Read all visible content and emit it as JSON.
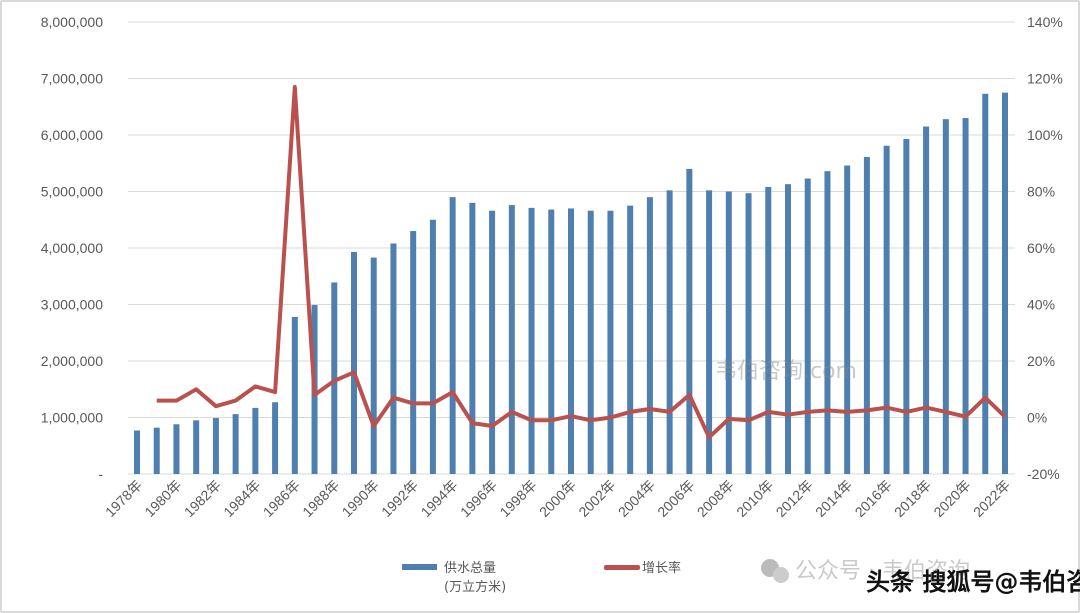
{
  "chart_data": {
    "type": "bar+line",
    "title": "",
    "categories": [
      "1978年",
      "1979年",
      "1980年",
      "1981年",
      "1982年",
      "1983年",
      "1984年",
      "1985年",
      "1986年",
      "1987年",
      "1988年",
      "1989年",
      "1990年",
      "1991年",
      "1992年",
      "1993年",
      "1994年",
      "1995年",
      "1996年",
      "1997年",
      "1998年",
      "1999年",
      "2000年",
      "2001年",
      "2002年",
      "2003年",
      "2004年",
      "2005年",
      "2006年",
      "2007年",
      "2008年",
      "2009年",
      "2010年",
      "2011年",
      "2012年",
      "2013年",
      "2014年",
      "2015年",
      "2016年",
      "2017年",
      "2018年",
      "2019年",
      "2020年",
      "2021年",
      "2022年"
    ],
    "series": [
      {
        "name": "供水总量",
        "name_line2": "(万立方米)",
        "type": "bar",
        "axis": "left",
        "color": "#4f7fae",
        "values": [
          770000,
          820000,
          880000,
          950000,
          990000,
          1060000,
          1170000,
          1270000,
          2780000,
          2990000,
          3390000,
          3930000,
          3830000,
          4080000,
          4300000,
          4500000,
          4900000,
          4800000,
          4660000,
          4760000,
          4710000,
          4680000,
          4700000,
          4660000,
          4660000,
          4750000,
          4900000,
          5020000,
          5400000,
          5020000,
          5000000,
          4970000,
          5080000,
          5130000,
          5230000,
          5360000,
          5460000,
          5610000,
          5810000,
          5930000,
          6150000,
          6280000,
          6300000,
          6730000,
          6750000
        ]
      },
      {
        "name": "增长率",
        "type": "line",
        "axis": "right",
        "color": "#b9524f",
        "values": [
          null,
          6,
          6,
          10,
          4,
          6,
          11,
          9,
          117,
          8,
          13,
          16,
          -3,
          7,
          5,
          5,
          9,
          -2,
          -3,
          2,
          -1,
          -1,
          0.5,
          -1,
          0,
          2,
          3,
          2,
          8,
          -7,
          -0.5,
          -1,
          2,
          1,
          2,
          2.5,
          2,
          2.5,
          3.5,
          2,
          3.5,
          2,
          0.3,
          7,
          0.3
        ]
      }
    ],
    "y_left": {
      "range": [
        0,
        8000000
      ],
      "ticks": [
        "-",
        "1,000,000",
        "2,000,000",
        "3,000,000",
        "4,000,000",
        "5,000,000",
        "6,000,000",
        "7,000,000",
        "8,000,000"
      ]
    },
    "y_right": {
      "range": [
        -20,
        140
      ],
      "ticks": [
        "-20%",
        "0%",
        "20%",
        "40%",
        "60%",
        "80%",
        "100%",
        "120%",
        "140%"
      ]
    },
    "x_tick_labels": [
      "1978年",
      "1980年",
      "1982年",
      "1984年",
      "1986年",
      "1988年",
      "1990年",
      "1992年",
      "1994年",
      "1996年",
      "1998年",
      "2000年",
      "2002年",
      "2004年",
      "2006年",
      "2008年",
      "2010年",
      "2012年",
      "2014年",
      "2016年",
      "2018年",
      "2020年",
      "2022年"
    ],
    "grid": true,
    "legend_position": "bottom"
  },
  "watermarks": {
    "center": "韦伯咨询.com",
    "wechat": "公众号 · 韦伯咨询",
    "sohu": "头条 搜狐号@韦伯咨询"
  }
}
